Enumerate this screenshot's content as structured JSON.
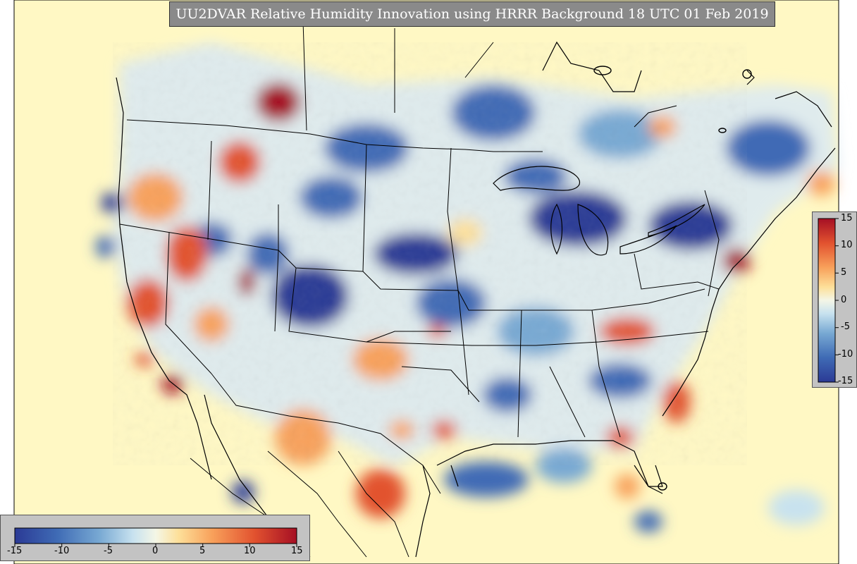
{
  "title": "UU2DVAR Relative Humidity Innovation using HRRR Background 18 UTC 01 Feb 2019",
  "colors": {
    "background_field": "#fff8c4",
    "title_box": "#8a8a8a",
    "colorbar_panel": "#c3c3c3",
    "boundaries": "#000000",
    "scale": [
      "#2b3a95",
      "#3f6bb5",
      "#78a9d3",
      "#c8e2ef",
      "#f4f6e6",
      "#fde09a",
      "#f8a15b",
      "#e2522f",
      "#a50f24"
    ]
  },
  "colorbar": {
    "min": -15,
    "max": 15,
    "vertical_ticks": [
      "15",
      "10",
      "5",
      "0",
      "-5",
      "-10",
      "-15"
    ],
    "horizontal_ticks": [
      "-15",
      "-10",
      "-5",
      "0",
      "5",
      "10",
      "15"
    ]
  },
  "map": {
    "projection": "lambert-conformal",
    "region": "CONUS"
  }
}
